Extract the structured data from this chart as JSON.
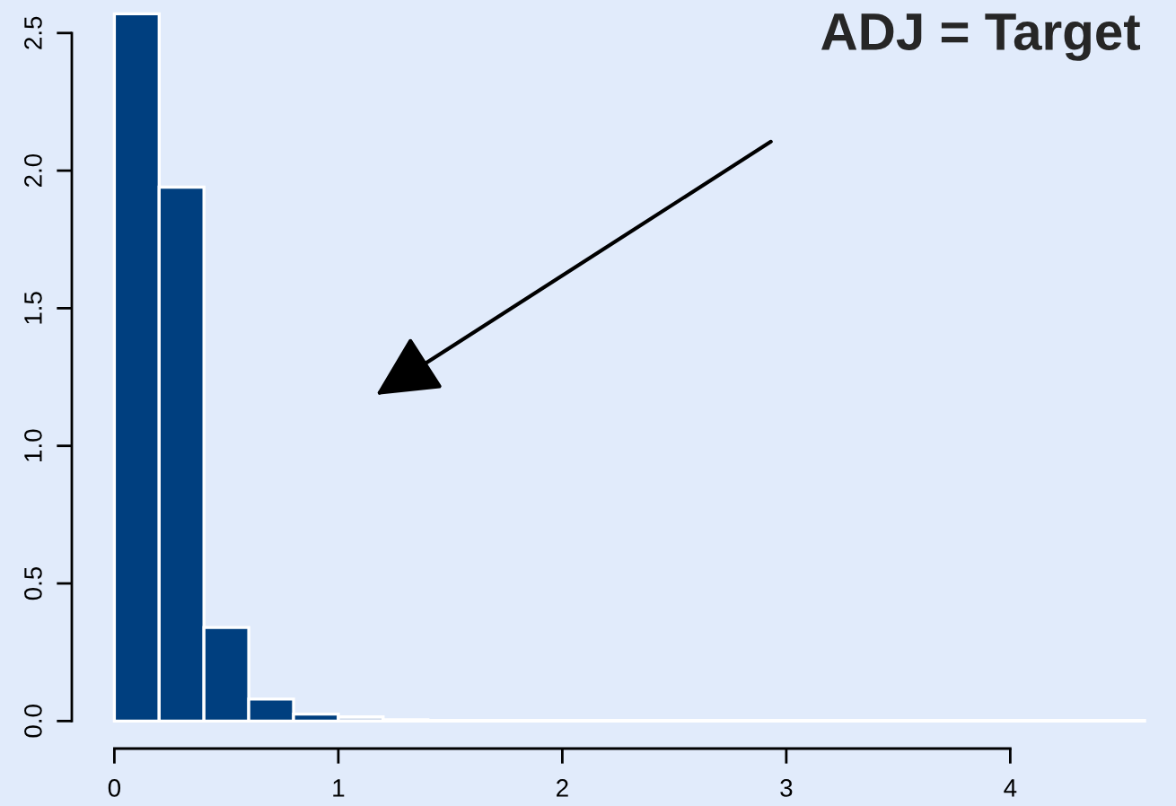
{
  "chart_data": {
    "type": "histogram",
    "title": "ADJ = Target",
    "bins": [
      0,
      0.2,
      0.4,
      0.6,
      0.8,
      1.0,
      1.2,
      1.4,
      1.6,
      1.8,
      2.0,
      2.2,
      2.4,
      2.6,
      2.8,
      3.0,
      3.2,
      3.4,
      3.6,
      3.8,
      4.0,
      4.2,
      4.4,
      4.6
    ],
    "values": [
      2.57,
      1.94,
      0.34,
      0.08,
      0.025,
      0.015,
      0.005,
      0.002,
      0.002,
      0.002,
      0.002,
      0.002,
      0.002,
      0.002,
      0.002,
      0.002,
      0.002,
      0.002,
      0.002,
      0.002,
      0.002,
      0.002,
      0.002
    ],
    "colors": [
      "#003f7f",
      "#003f7f",
      "#003f7f",
      "#003f7f",
      "#003f7f",
      "#c5d2e5",
      "#c5d2e5",
      "#c5d2e5",
      "#c5d2e5",
      "#c5d2e5",
      "#c5d2e5",
      "#c5d2e5",
      "#c5d2e5",
      "#c5d2e5",
      "#c5d2e5",
      "#c5d2e5",
      "#c5d2e5",
      "#c5d2e5",
      "#c5d2e5",
      "#c5d2e5",
      "#c5d2e5",
      "#c5d2e5",
      "#c5d2e5"
    ],
    "xlim": [
      -0.19,
      4.74
    ],
    "ylim": [
      -0.1,
      2.62
    ],
    "xticks": [
      0,
      1,
      2,
      3,
      4
    ],
    "yticks": [
      {
        "value": 0,
        "label": "0.0"
      },
      {
        "value": 0.5,
        "label": "0.5"
      },
      {
        "value": 1.0,
        "label": "1.0"
      },
      {
        "value": 1.5,
        "label": "1.5"
      },
      {
        "value": 2.0,
        "label": "2.0"
      },
      {
        "value": 2.5,
        "label": "2.5"
      }
    ],
    "grid": false
  }
}
